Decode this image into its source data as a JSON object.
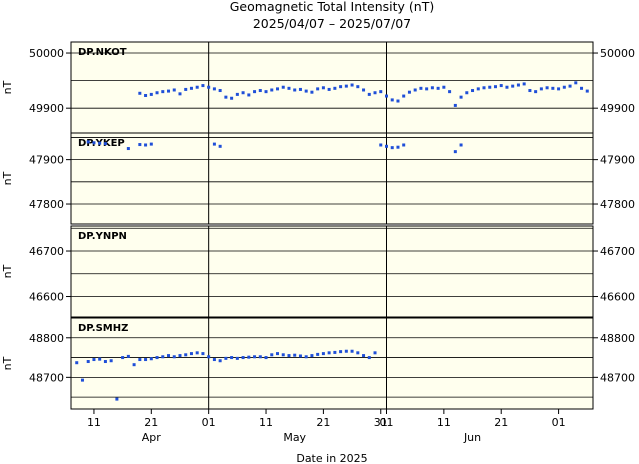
{
  "chart_data": {
    "type": "scatter",
    "title": "Geomagnetic Total Intensity (nT)",
    "subtitle": "2025/04/07 – 2025/07/07",
    "xlabel": "Date in 2025",
    "ylabel": "nT",
    "xlim": [
      "2025-04-07",
      "2025-07-07"
    ],
    "x_ticks": [
      {
        "date": "2025-04-11",
        "label": "11"
      },
      {
        "date": "2025-04-21",
        "label": "21"
      },
      {
        "date": "2025-05-01",
        "label": "01"
      },
      {
        "date": "2025-05-11",
        "label": "11"
      },
      {
        "date": "2025-05-21",
        "label": "21"
      },
      {
        "date": "2025-05-31",
        "label": "31"
      },
      {
        "date": "2025-06-01",
        "label": "01"
      },
      {
        "date": "2025-06-11",
        "label": "11"
      },
      {
        "date": "2025-06-21",
        "label": "21"
      },
      {
        "date": "2025-07-01",
        "label": "01"
      }
    ],
    "months": [
      {
        "date": "2025-04-21",
        "label": "Apr"
      },
      {
        "date": "2025-05-16",
        "label": "May"
      },
      {
        "date": "2025-06-16",
        "label": "Jun"
      }
    ],
    "month_boundaries": [
      "2025-05-01",
      "2025-06-01"
    ],
    "grid": true,
    "marker_color": "#1f4fd8",
    "panel_background": "#ffffee",
    "series": [
      {
        "name": "DP.NKOT",
        "ylim": [
          49855,
          50020
        ],
        "yticks": [
          49900,
          50000
        ],
        "ytick_labels": [
          "49900",
          "50000"
        ],
        "points": [
          [
            "2025-04-19",
            49927
          ],
          [
            "2025-04-20",
            49923
          ],
          [
            "2025-04-21",
            49925
          ],
          [
            "2025-04-22",
            49928
          ],
          [
            "2025-04-23",
            49930
          ],
          [
            "2025-04-24",
            49931
          ],
          [
            "2025-04-25",
            49933
          ],
          [
            "2025-04-26",
            49926
          ],
          [
            "2025-04-27",
            49934
          ],
          [
            "2025-04-28",
            49936
          ],
          [
            "2025-04-29",
            49938
          ],
          [
            "2025-04-30",
            49941
          ],
          [
            "2025-05-01",
            49938
          ],
          [
            "2025-05-02",
            49935
          ],
          [
            "2025-05-03",
            49932
          ],
          [
            "2025-05-04",
            49920
          ],
          [
            "2025-05-05",
            49918
          ],
          [
            "2025-05-06",
            49925
          ],
          [
            "2025-05-07",
            49928
          ],
          [
            "2025-05-08",
            49924
          ],
          [
            "2025-05-09",
            49930
          ],
          [
            "2025-05-10",
            49932
          ],
          [
            "2025-05-11",
            49930
          ],
          [
            "2025-05-12",
            49933
          ],
          [
            "2025-05-13",
            49935
          ],
          [
            "2025-05-14",
            49938
          ],
          [
            "2025-05-15",
            49936
          ],
          [
            "2025-05-16",
            49933
          ],
          [
            "2025-05-17",
            49934
          ],
          [
            "2025-05-18",
            49931
          ],
          [
            "2025-05-19",
            49929
          ],
          [
            "2025-05-20",
            49935
          ],
          [
            "2025-05-21",
            49937
          ],
          [
            "2025-05-22",
            49934
          ],
          [
            "2025-05-23",
            49936
          ],
          [
            "2025-05-24",
            49939
          ],
          [
            "2025-05-25",
            49940
          ],
          [
            "2025-05-26",
            49942
          ],
          [
            "2025-05-27",
            49939
          ],
          [
            "2025-05-28",
            49933
          ],
          [
            "2025-05-29",
            49925
          ],
          [
            "2025-05-30",
            49928
          ],
          [
            "2025-05-31",
            49930
          ],
          [
            "2025-06-01",
            49922
          ],
          [
            "2025-06-02",
            49915
          ],
          [
            "2025-06-03",
            49913
          ],
          [
            "2025-06-04",
            49922
          ],
          [
            "2025-06-05",
            49929
          ],
          [
            "2025-06-06",
            49933
          ],
          [
            "2025-06-07",
            49936
          ],
          [
            "2025-06-08",
            49935
          ],
          [
            "2025-06-09",
            49937
          ],
          [
            "2025-06-10",
            49936
          ],
          [
            "2025-06-11",
            49938
          ],
          [
            "2025-06-12",
            49930
          ],
          [
            "2025-06-13",
            49905
          ],
          [
            "2025-06-14",
            49920
          ],
          [
            "2025-06-15",
            49928
          ],
          [
            "2025-06-16",
            49932
          ],
          [
            "2025-06-17",
            49935
          ],
          [
            "2025-06-18",
            49937
          ],
          [
            "2025-06-19",
            49938
          ],
          [
            "2025-06-20",
            49939
          ],
          [
            "2025-06-21",
            49941
          ],
          [
            "2025-06-22",
            49938
          ],
          [
            "2025-06-23",
            49940
          ],
          [
            "2025-06-24",
            49942
          ],
          [
            "2025-06-25",
            49944
          ],
          [
            "2025-06-26",
            49932
          ],
          [
            "2025-06-27",
            49930
          ],
          [
            "2025-06-28",
            49935
          ],
          [
            "2025-06-29",
            49937
          ],
          [
            "2025-06-30",
            49936
          ],
          [
            "2025-07-01",
            49935
          ],
          [
            "2025-07-02",
            49938
          ],
          [
            "2025-07-03",
            49940
          ],
          [
            "2025-07-04",
            49946
          ],
          [
            "2025-07-05",
            49936
          ],
          [
            "2025-07-06",
            49931
          ]
        ]
      },
      {
        "name": "DP.YKEP",
        "ylim": [
          47755,
          47960
        ],
        "yticks": [
          47800,
          47900
        ],
        "ytick_labels": [
          "47800",
          "47900"
        ],
        "points": [
          [
            "2025-04-10",
            47940
          ],
          [
            "2025-04-11",
            47938
          ],
          [
            "2025-04-12",
            47937
          ],
          [
            "2025-04-13",
            47936
          ],
          [
            "2025-04-17",
            47925
          ],
          [
            "2025-04-19",
            47934
          ],
          [
            "2025-04-20",
            47933
          ],
          [
            "2025-04-21",
            47935
          ],
          [
            "2025-05-02",
            47935
          ],
          [
            "2025-05-03",
            47930
          ],
          [
            "2025-05-31",
            47933
          ],
          [
            "2025-06-01",
            47930
          ],
          [
            "2025-06-02",
            47927
          ],
          [
            "2025-06-03",
            47928
          ],
          [
            "2025-06-04",
            47933
          ],
          [
            "2025-06-13",
            47918
          ],
          [
            "2025-06-14",
            47933
          ]
        ]
      },
      {
        "name": "DP.YNPN",
        "ylim": [
          46555,
          46755
        ],
        "yticks": [
          46600,
          46700
        ],
        "ytick_labels": [
          "46600",
          "46700"
        ],
        "points": []
      },
      {
        "name": "DP.SMHZ",
        "ylim": [
          48620,
          48850
        ],
        "yticks": [
          48700,
          48800
        ],
        "ytick_labels": [
          "48700",
          "48800"
        ],
        "points": [
          [
            "2025-04-08",
            48737
          ],
          [
            "2025-04-09",
            48693
          ],
          [
            "2025-04-10",
            48740
          ],
          [
            "2025-04-11",
            48745
          ],
          [
            "2025-04-12",
            48746
          ],
          [
            "2025-04-13",
            48740
          ],
          [
            "2025-04-14",
            48742
          ],
          [
            "2025-04-15",
            48645
          ],
          [
            "2025-04-16",
            48750
          ],
          [
            "2025-04-17",
            48753
          ],
          [
            "2025-04-18",
            48732
          ],
          [
            "2025-04-19",
            48745
          ],
          [
            "2025-04-20",
            48745
          ],
          [
            "2025-04-21",
            48747
          ],
          [
            "2025-04-22",
            48750
          ],
          [
            "2025-04-23",
            48752
          ],
          [
            "2025-04-24",
            48755
          ],
          [
            "2025-04-25",
            48752
          ],
          [
            "2025-04-26",
            48755
          ],
          [
            "2025-04-27",
            48757
          ],
          [
            "2025-04-28",
            48760
          ],
          [
            "2025-04-29",
            48762
          ],
          [
            "2025-04-30",
            48760
          ],
          [
            "2025-05-01",
            48752
          ],
          [
            "2025-05-02",
            48745
          ],
          [
            "2025-05-03",
            48742
          ],
          [
            "2025-05-04",
            48748
          ],
          [
            "2025-05-05",
            48750
          ],
          [
            "2025-05-06",
            48748
          ],
          [
            "2025-05-07",
            48750
          ],
          [
            "2025-05-08",
            48751
          ],
          [
            "2025-05-09",
            48752
          ],
          [
            "2025-05-10",
            48752
          ],
          [
            "2025-05-11",
            48750
          ],
          [
            "2025-05-12",
            48757
          ],
          [
            "2025-05-13",
            48760
          ],
          [
            "2025-05-14",
            48757
          ],
          [
            "2025-05-15",
            48755
          ],
          [
            "2025-05-16",
            48756
          ],
          [
            "2025-05-17",
            48754
          ],
          [
            "2025-05-18",
            48752
          ],
          [
            "2025-05-19",
            48755
          ],
          [
            "2025-05-20",
            48758
          ],
          [
            "2025-05-21",
            48760
          ],
          [
            "2025-05-22",
            48762
          ],
          [
            "2025-05-23",
            48763
          ],
          [
            "2025-05-24",
            48765
          ],
          [
            "2025-05-25",
            48766
          ],
          [
            "2025-05-26",
            48766
          ],
          [
            "2025-05-27",
            48762
          ],
          [
            "2025-05-28",
            48755
          ],
          [
            "2025-05-29",
            48750
          ],
          [
            "2025-05-30",
            48762
          ]
        ]
      }
    ]
  }
}
